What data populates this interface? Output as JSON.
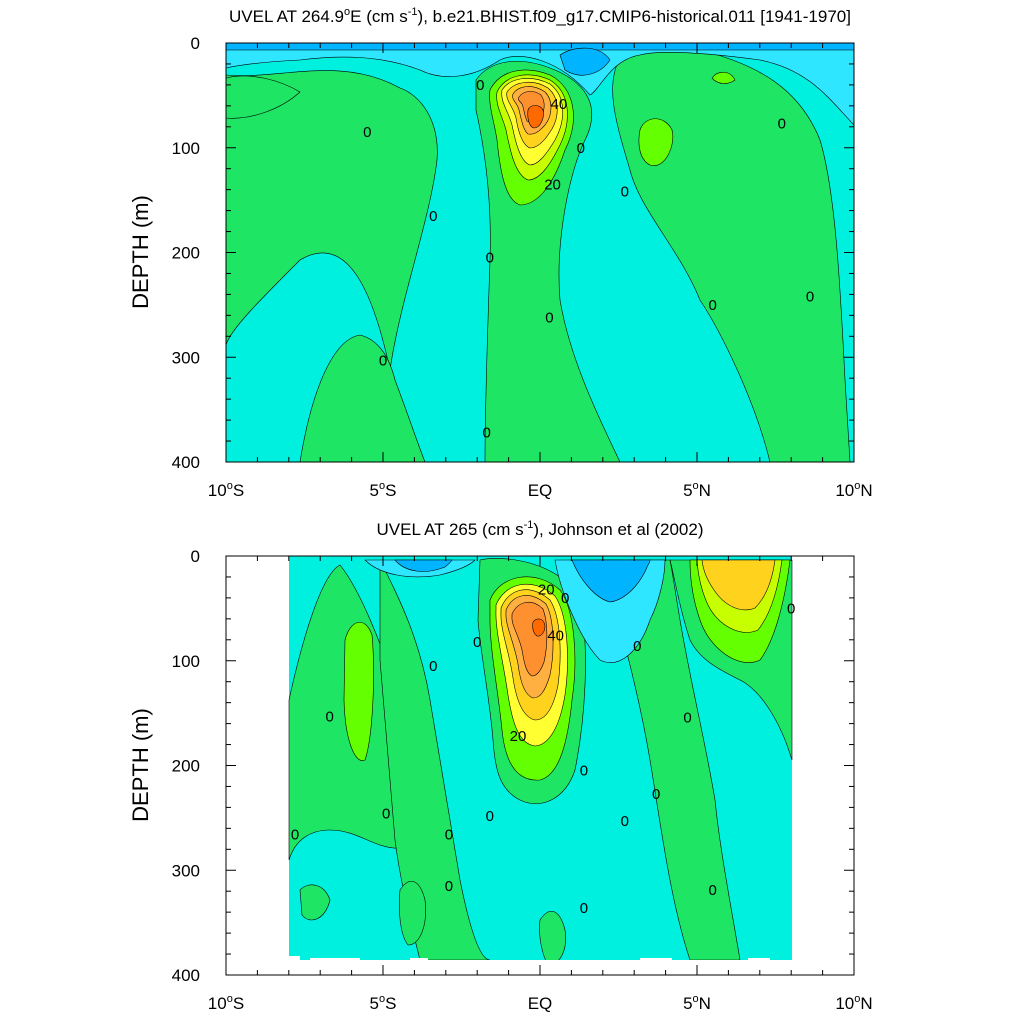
{
  "colors": {
    "cyan_dark": "#00b4ff",
    "cyan": "#2ee6ff",
    "aqua": "#00f0e0",
    "aqua_light": "#00ffd2",
    "green": "#1ee664",
    "green_light": "#64ff00",
    "yellow_green": "#c8ff00",
    "yellow": "#ffff32",
    "yellow_dark": "#ffd21e",
    "orange_light": "#ffb040",
    "orange": "#ff9030",
    "orange_dark": "#ff6a00"
  },
  "chart_data": [
    {
      "type": "contour",
      "title": "UVEL AT 264.9ºE (cm s-1), b.e21.BHIST.f09_g17.CMIP6-historical.011 [1941-1970]",
      "title_parts": {
        "a": "UVEL AT 264.9",
        "deg": "o",
        "b": "E (cm s",
        "exp": "-1",
        "c": "), b.e21.BHIST.f09_g17.CMIP6-historical.011 [1941-1970]"
      },
      "xlabel": "",
      "ylabel": "DEPTH (m)",
      "xlim": [
        -10,
        10
      ],
      "ylim": [
        0,
        400
      ],
      "x_ticks": [
        {
          "v": -10,
          "num": "10",
          "deg": "o",
          "hemi": "S"
        },
        {
          "v": -5,
          "num": "5",
          "deg": "o",
          "hemi": "S"
        },
        {
          "v": 0,
          "num": "EQ",
          "deg": "",
          "hemi": ""
        },
        {
          "v": 5,
          "num": "5",
          "deg": "o",
          "hemi": "N"
        },
        {
          "v": 10,
          "num": "10",
          "deg": "o",
          "hemi": "N"
        }
      ],
      "y_ticks": [
        0,
        100,
        200,
        300,
        400
      ],
      "contour_labels": [
        {
          "text": "0",
          "lat": -5.5,
          "depth": 85
        },
        {
          "text": "0",
          "lat": -1.9,
          "depth": 40
        },
        {
          "text": "0",
          "lat": -3.4,
          "depth": 165
        },
        {
          "text": "0",
          "lat": -1.6,
          "depth": 205
        },
        {
          "text": "0",
          "lat": 0.3,
          "depth": 262
        },
        {
          "text": "0",
          "lat": -5.0,
          "depth": 303
        },
        {
          "text": "0",
          "lat": -1.7,
          "depth": 372
        },
        {
          "text": "0",
          "lat": 1.3,
          "depth": 100
        },
        {
          "text": "0",
          "lat": 2.7,
          "depth": 142
        },
        {
          "text": "0",
          "lat": 5.5,
          "depth": 250
        },
        {
          "text": "0",
          "lat": 7.7,
          "depth": 77
        },
        {
          "text": "0",
          "lat": 8.6,
          "depth": 242
        },
        {
          "text": "40",
          "lat": 0.6,
          "depth": 58
        },
        {
          "text": "20",
          "lat": 0.4,
          "depth": 135
        }
      ],
      "features": [
        {
          "kind": "undercurrent_core",
          "lat": 0.0,
          "depth": 70,
          "max_approx": 70
        }
      ]
    },
    {
      "type": "contour",
      "title": "UVEL AT 265 (cm s-1), Johnson et al (2002)",
      "title_parts": {
        "a": "UVEL AT 265 (cm s",
        "exp": "-1",
        "c": "), Johnson et al (2002)"
      },
      "xlabel": "",
      "ylabel": "DEPTH (m)",
      "xlim": [
        -10,
        10
      ],
      "ylim": [
        0,
        400
      ],
      "data_lat_range": [
        -8,
        8
      ],
      "x_ticks": [
        {
          "v": -10,
          "num": "10",
          "deg": "o",
          "hemi": "S"
        },
        {
          "v": -5,
          "num": "5",
          "deg": "o",
          "hemi": "S"
        },
        {
          "v": 0,
          "num": "EQ",
          "deg": "",
          "hemi": ""
        },
        {
          "v": 5,
          "num": "5",
          "deg": "o",
          "hemi": "N"
        },
        {
          "v": 10,
          "num": "10",
          "deg": "o",
          "hemi": "N"
        }
      ],
      "y_ticks": [
        0,
        100,
        200,
        300,
        400
      ],
      "contour_labels": [
        {
          "text": "20",
          "lat": 0.2,
          "depth": 32
        },
        {
          "text": "0",
          "lat": 0.8,
          "depth": 40
        },
        {
          "text": "0",
          "lat": -2.0,
          "depth": 82
        },
        {
          "text": "40",
          "lat": 0.5,
          "depth": 76
        },
        {
          "text": "0",
          "lat": -3.4,
          "depth": 105
        },
        {
          "text": "0",
          "lat": -6.7,
          "depth": 153
        },
        {
          "text": "20",
          "lat": -0.7,
          "depth": 172
        },
        {
          "text": "0",
          "lat": 3.1,
          "depth": 86
        },
        {
          "text": "0",
          "lat": 4.7,
          "depth": 154
        },
        {
          "text": "0",
          "lat": 8.0,
          "depth": 50
        },
        {
          "text": "0",
          "lat": 1.4,
          "depth": 205
        },
        {
          "text": "0",
          "lat": -7.8,
          "depth": 266
        },
        {
          "text": "0",
          "lat": -4.9,
          "depth": 246
        },
        {
          "text": "0",
          "lat": -2.9,
          "depth": 266
        },
        {
          "text": "0",
          "lat": -1.6,
          "depth": 248
        },
        {
          "text": "0",
          "lat": 2.7,
          "depth": 253
        },
        {
          "text": "0",
          "lat": 3.7,
          "depth": 227
        },
        {
          "text": "0",
          "lat": -2.9,
          "depth": 315
        },
        {
          "text": "0",
          "lat": 1.4,
          "depth": 336
        },
        {
          "text": "0",
          "lat": 5.5,
          "depth": 319
        }
      ],
      "features": [
        {
          "kind": "undercurrent_core",
          "lat": -0.1,
          "depth": 65,
          "max_approx": 60
        },
        {
          "kind": "positive_surface_jet",
          "lat": 6.3,
          "depth": 20
        }
      ]
    }
  ]
}
